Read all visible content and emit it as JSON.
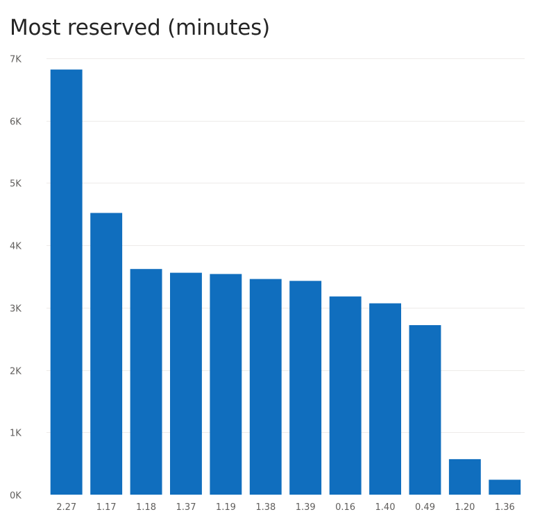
{
  "chart_data": {
    "type": "bar",
    "title": "Most reserved (minutes)",
    "xlabel": "",
    "ylabel": "",
    "categories": [
      "2.27",
      "1.17",
      "1.18",
      "1.37",
      "1.19",
      "1.38",
      "1.39",
      "0.16",
      "1.40",
      "0.49",
      "1.20",
      "1.36"
    ],
    "values": [
      6820,
      4520,
      3620,
      3560,
      3540,
      3460,
      3430,
      3180,
      3070,
      2720,
      570,
      240
    ],
    "ylim": [
      0,
      7000
    ],
    "yticks": [
      {
        "value": 0,
        "label": "0K"
      },
      {
        "value": 1000,
        "label": "1K"
      },
      {
        "value": 2000,
        "label": "2K"
      },
      {
        "value": 3000,
        "label": "3K"
      },
      {
        "value": 4000,
        "label": "4K"
      },
      {
        "value": 5000,
        "label": "5K"
      },
      {
        "value": 6000,
        "label": "6K"
      },
      {
        "value": 7000,
        "label": "7K"
      }
    ],
    "grid": true,
    "bar_color": "#106ebe",
    "grid_color": "#edebe9"
  }
}
